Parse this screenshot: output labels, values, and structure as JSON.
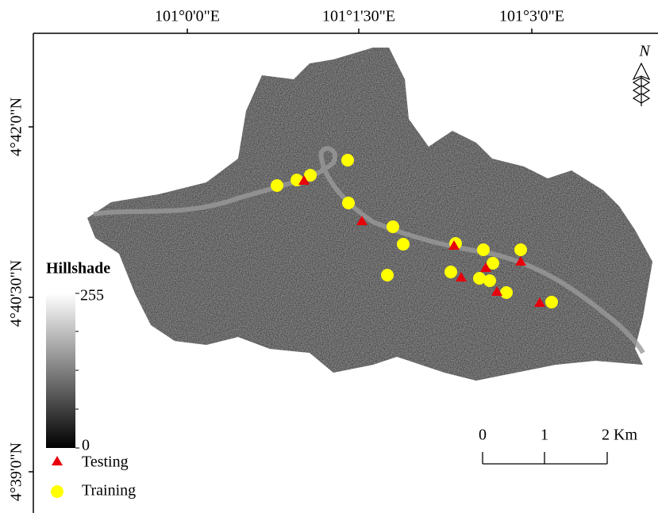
{
  "map": {
    "x_ticks": [
      "101°0'0\"E",
      "101°1'30\"E",
      "101°3'0\"E"
    ],
    "y_ticks": [
      "4°42'0\"N",
      "4°40'30\"N",
      "4°39'0\"N"
    ],
    "north": "N",
    "legend": {
      "title": "Hillshade",
      "max": 255,
      "min": 0,
      "items": [
        "Testing",
        "Training"
      ]
    },
    "scale_bar": {
      "labels": [
        "0",
        "1",
        "2 Km"
      ]
    }
  }
}
